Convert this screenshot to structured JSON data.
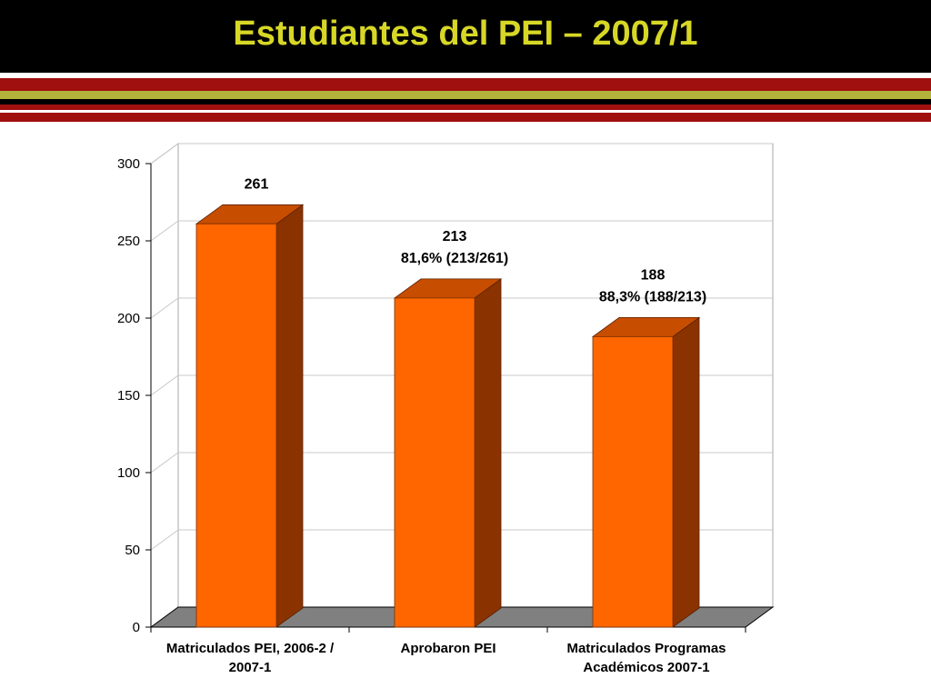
{
  "slide": {
    "title": "Estudiantes del PEI – 2007/1"
  },
  "colors": {
    "title_band": "#000000",
    "title_text": "#d7d726",
    "stripe_red": "#a0100f",
    "stripe_olive": "#b3b33c",
    "bar_front": "#ff6600",
    "bar_side": "#8a3300",
    "bar_top": "#c74d00",
    "floor": "#808080",
    "grid": "#c8c8c8"
  },
  "chart_data": {
    "type": "bar",
    "title": "",
    "xlabel": "",
    "ylabel": "",
    "ylim": [
      0,
      300
    ],
    "yticks": [
      "0",
      "50",
      "100",
      "150",
      "200",
      "250",
      "300"
    ],
    "categories": [
      [
        "Matriculados PEI, 2006-2 /",
        "2007-1"
      ],
      [
        "Aprobaron PEI"
      ],
      [
        "Matriculados Programas",
        "Académicos 2007-1"
      ]
    ],
    "values": [
      261,
      213,
      188
    ],
    "data_labels": [
      [
        "261"
      ],
      [
        "213",
        "81,6% (213/261)"
      ],
      [
        "188",
        "88,3% (188/213)"
      ]
    ],
    "grid": true,
    "legend": "none",
    "style": "3d-column"
  }
}
